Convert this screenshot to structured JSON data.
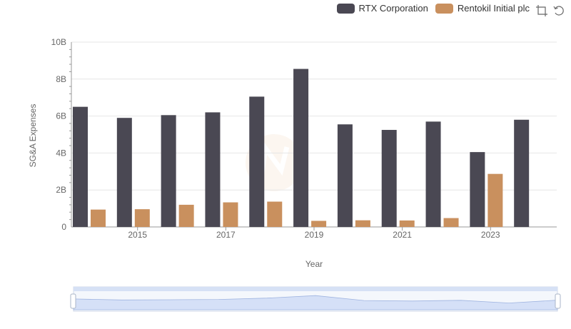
{
  "legend": {
    "series": [
      {
        "name": "RTX Corporation",
        "color": "#4a4853"
      },
      {
        "name": "Rentokil Initial plc",
        "color": "#c9905e"
      }
    ]
  },
  "toolbar": {
    "icons": [
      "zoom-select-icon",
      "restore-icon"
    ]
  },
  "chart_data": {
    "type": "bar",
    "xlabel": "Year",
    "ylabel": "SG&A Expenses",
    "categories": [
      "2014",
      "2015",
      "2016",
      "2017",
      "2018",
      "2019",
      "2020",
      "2021",
      "2022",
      "2023",
      "2024"
    ],
    "x_tick_labels": [
      "2015",
      "2017",
      "2019",
      "2021",
      "2023"
    ],
    "y_tick_labels": [
      "0",
      "2B",
      "4B",
      "6B",
      "8B",
      "10B"
    ],
    "ylim": [
      0,
      10000000000
    ],
    "series": [
      {
        "name": "RTX Corporation",
        "color": "#4a4853",
        "values": [
          6500000000,
          5900000000,
          6050000000,
          6200000000,
          7050000000,
          8550000000,
          5550000000,
          5250000000,
          5700000000,
          4050000000,
          5800000000
        ]
      },
      {
        "name": "Rentokil Initial plc",
        "color": "#c9905e",
        "values": [
          940000000,
          960000000,
          1200000000,
          1330000000,
          1370000000,
          330000000,
          360000000,
          350000000,
          480000000,
          2870000000,
          null
        ]
      }
    ],
    "grid": true,
    "legend_position": "top-right"
  }
}
